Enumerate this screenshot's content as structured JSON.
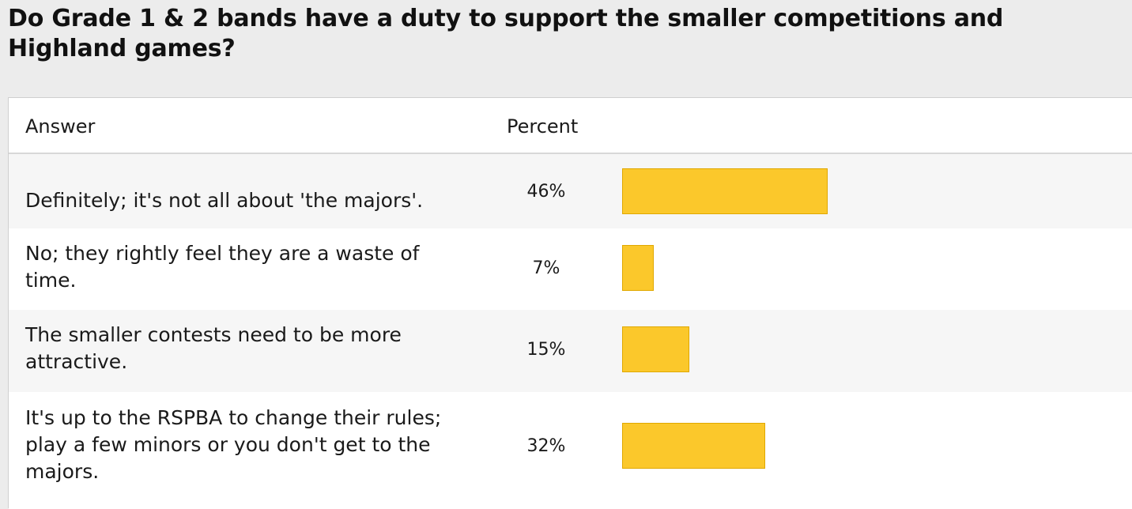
{
  "question": "Do Grade 1 & 2 bands have a duty to support the smaller competitions and Highland games?",
  "table": {
    "header": {
      "answer": "Answer",
      "percent": "Percent"
    },
    "rows": [
      {
        "answer": "Definitely; it's not all about 'the majors'.",
        "percent_label": "46%",
        "percent_value": 46
      },
      {
        "answer": "No; they rightly feel they are a waste of time.",
        "percent_label": "7%",
        "percent_value": 7
      },
      {
        "answer": "The smaller contests need to be more attractive.",
        "percent_label": "15%",
        "percent_value": 15
      },
      {
        "answer": "It's up to the RSPBA to change their rules; play a few minors or you don't get to the majors.",
        "percent_label": "32%",
        "percent_value": 32
      }
    ]
  },
  "colors": {
    "bar_fill": "#fbc82b",
    "bar_border": "#e0a800"
  }
}
